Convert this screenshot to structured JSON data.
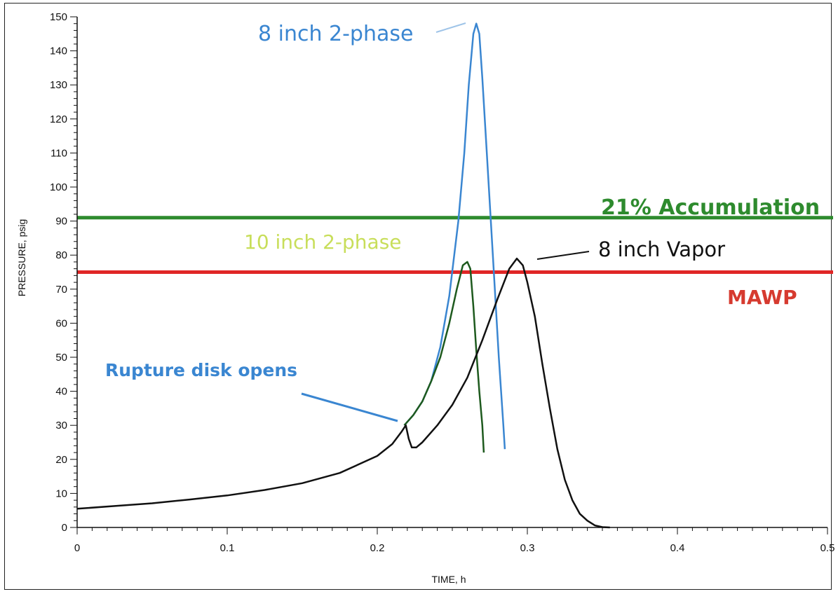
{
  "chart_data": {
    "type": "line",
    "xlabel": "TIME, h",
    "ylabel": "PRESSURE, psig",
    "xlim": [
      0,
      0.5
    ],
    "ylim": [
      0,
      150
    ],
    "x_ticks": [
      "0",
      "0.1",
      "0.2",
      "0.3",
      "0.4",
      "0.5"
    ],
    "x_tick_values": [
      0,
      0.1,
      0.2,
      0.3,
      0.4,
      0.5
    ],
    "y_ticks": [
      "0",
      "10",
      "20",
      "30",
      "40",
      "50",
      "60",
      "70",
      "80",
      "90",
      "100",
      "110",
      "120",
      "130",
      "140",
      "150"
    ],
    "y_tick_values": [
      0,
      10,
      20,
      30,
      40,
      50,
      60,
      70,
      80,
      90,
      100,
      110,
      120,
      130,
      140,
      150
    ],
    "grid": false,
    "reference_lines": [
      {
        "label": "21% Accumulation",
        "y": 91,
        "color": "#2e8b2e"
      },
      {
        "label": "MAWP",
        "y": 75,
        "color": "#e02626"
      }
    ],
    "series": [
      {
        "name": "8 inch 2-phase",
        "color": "#3a86d1",
        "points": [
          [
            0.218,
            30
          ],
          [
            0.224,
            33
          ],
          [
            0.23,
            37
          ],
          [
            0.236,
            43
          ],
          [
            0.242,
            53
          ],
          [
            0.248,
            68
          ],
          [
            0.254,
            90
          ],
          [
            0.258,
            110
          ],
          [
            0.261,
            130
          ],
          [
            0.264,
            145
          ],
          [
            0.266,
            148
          ],
          [
            0.268,
            145
          ],
          [
            0.27,
            132
          ],
          [
            0.273,
            110
          ],
          [
            0.277,
            80
          ],
          [
            0.281,
            50
          ],
          [
            0.284,
            30
          ],
          [
            0.285,
            23
          ]
        ]
      },
      {
        "name": "10 inch 2-phase",
        "color": "#1e5a1e",
        "points": [
          [
            0.218,
            30
          ],
          [
            0.224,
            33
          ],
          [
            0.23,
            37
          ],
          [
            0.236,
            43
          ],
          [
            0.242,
            50
          ],
          [
            0.248,
            60
          ],
          [
            0.253,
            70
          ],
          [
            0.257,
            77
          ],
          [
            0.26,
            78
          ],
          [
            0.262,
            76
          ],
          [
            0.264,
            65
          ],
          [
            0.266,
            52
          ],
          [
            0.268,
            40
          ],
          [
            0.27,
            30
          ],
          [
            0.271,
            22
          ]
        ]
      },
      {
        "name": "8 inch Vapor",
        "color": "#111111",
        "points": [
          [
            0,
            5.5
          ],
          [
            0.025,
            6.3
          ],
          [
            0.05,
            7.1
          ],
          [
            0.075,
            8.2
          ],
          [
            0.1,
            9.4
          ],
          [
            0.125,
            11
          ],
          [
            0.15,
            13
          ],
          [
            0.175,
            16
          ],
          [
            0.2,
            21
          ],
          [
            0.21,
            24.5
          ],
          [
            0.216,
            28
          ],
          [
            0.219,
            30
          ],
          [
            0.221,
            26
          ],
          [
            0.223,
            23.5
          ],
          [
            0.226,
            23.5
          ],
          [
            0.23,
            25
          ],
          [
            0.24,
            30
          ],
          [
            0.25,
            36
          ],
          [
            0.26,
            44
          ],
          [
            0.27,
            55
          ],
          [
            0.28,
            67
          ],
          [
            0.288,
            76
          ],
          [
            0.293,
            79
          ],
          [
            0.297,
            77
          ],
          [
            0.3,
            72
          ],
          [
            0.305,
            62
          ],
          [
            0.31,
            48
          ],
          [
            0.315,
            35
          ],
          [
            0.32,
            23
          ],
          [
            0.325,
            14
          ],
          [
            0.33,
            8
          ],
          [
            0.335,
            4
          ],
          [
            0.34,
            2
          ],
          [
            0.345,
            0.6
          ],
          [
            0.35,
            0.1
          ],
          [
            0.355,
            0
          ]
        ]
      }
    ],
    "annotations": [
      {
        "text": "8 inch 2-phase",
        "color": "#3a86d1",
        "weight": "normal"
      },
      {
        "text": "21% Accumulation",
        "color": "#2e8b2e",
        "weight": "bold"
      },
      {
        "text": "10 inch 2-phase",
        "color": "#c8de5a",
        "weight": "normal"
      },
      {
        "text": "8 inch Vapor",
        "color": "#111111",
        "weight": "normal"
      },
      {
        "text": "MAWP",
        "color": "#d63a2f",
        "weight": "bold"
      },
      {
        "text": "Rupture disk opens",
        "color": "#3a86d1",
        "weight": "bold"
      }
    ]
  }
}
